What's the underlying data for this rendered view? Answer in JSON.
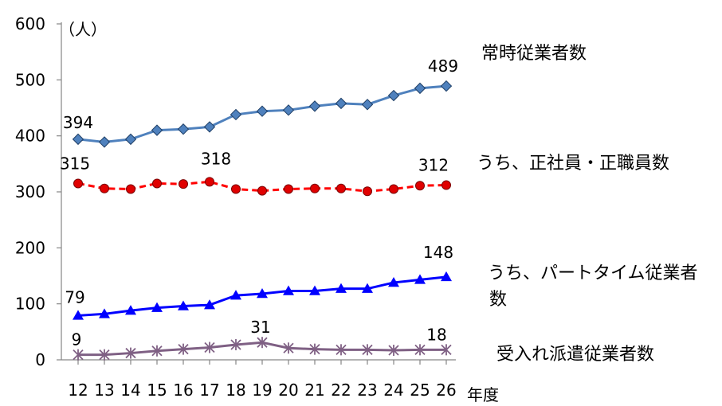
{
  "chart_data": {
    "type": "line",
    "unit_label": "（人）",
    "x_title": "年度",
    "categories": [
      "12",
      "13",
      "14",
      "15",
      "16",
      "17",
      "18",
      "19",
      "20",
      "21",
      "22",
      "23",
      "24",
      "25",
      "26"
    ],
    "ylim": [
      0,
      600
    ],
    "yticks": [
      0,
      100,
      200,
      300,
      400,
      500,
      600
    ],
    "grid": false,
    "legend": "right, labels beside lines",
    "series": [
      {
        "name": "常時従業者数",
        "color": "#4F81BD",
        "marker": "diamond",
        "marker_fill": "#4F81BD",
        "dashed": false,
        "values": [
          394,
          389,
          394,
          410,
          412,
          416,
          438,
          444,
          446,
          453,
          458,
          456,
          472,
          485,
          489
        ]
      },
      {
        "name": "うち、正社員・正職員数",
        "color": "#FF0000",
        "marker": "circle",
        "marker_fill": "#E00000",
        "dashed": true,
        "values": [
          315,
          306,
          305,
          315,
          314,
          318,
          305,
          302,
          305,
          306,
          306,
          301,
          305,
          311,
          312
        ]
      },
      {
        "name": "うち、パートタイム従業者\n数",
        "color": "#0000FF",
        "marker": "triangle",
        "marker_fill": "#0000FF",
        "dashed": false,
        "values": [
          79,
          82,
          88,
          93,
          96,
          98,
          115,
          118,
          123,
          123,
          127,
          127,
          138,
          143,
          148
        ]
      },
      {
        "name": "受入れ派遣従業者数",
        "color": "#7F6084",
        "marker": "star",
        "marker_fill": "#7F6084",
        "dashed": false,
        "values": [
          9,
          9,
          12,
          16,
          19,
          22,
          27,
          31,
          21,
          19,
          18,
          18,
          17,
          18,
          18
        ]
      }
    ],
    "annotations": [
      {
        "series": 0,
        "index": 0,
        "text": "394"
      },
      {
        "series": 0,
        "index": 14,
        "text": "489"
      },
      {
        "series": 1,
        "index": 0,
        "text": "315"
      },
      {
        "series": 1,
        "index": 5,
        "text": "318"
      },
      {
        "series": 1,
        "index": 14,
        "text": "312"
      },
      {
        "series": 2,
        "index": 0,
        "text": "79"
      },
      {
        "series": 2,
        "index": 14,
        "text": "148"
      },
      {
        "series": 3,
        "index": 0,
        "text": "9"
      },
      {
        "series": 3,
        "index": 7,
        "text": "31"
      },
      {
        "series": 3,
        "index": 14,
        "text": "18"
      }
    ]
  }
}
